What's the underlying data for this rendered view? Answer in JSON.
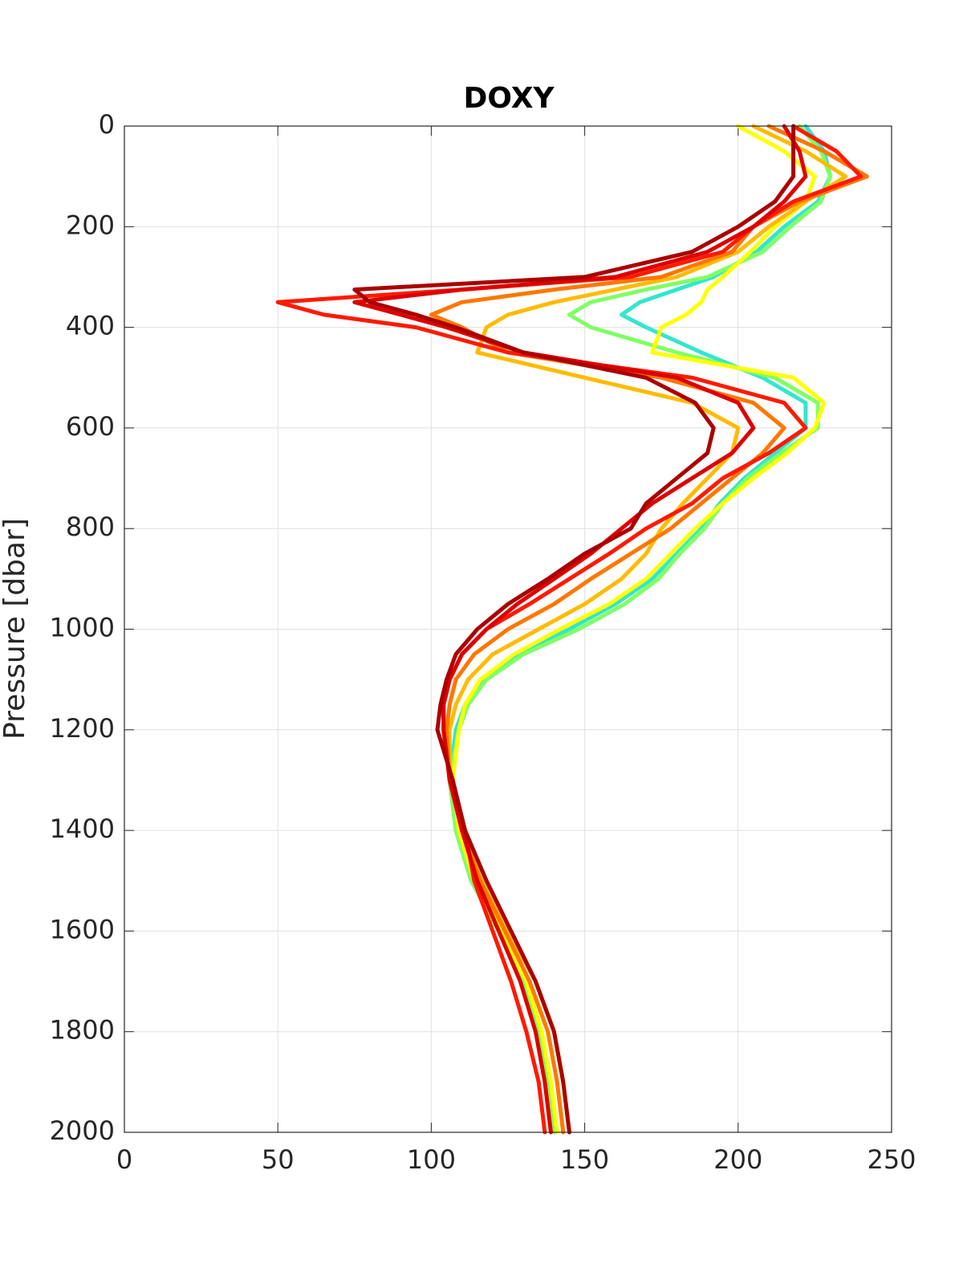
{
  "chart_data": {
    "type": "line",
    "title": "DOXY",
    "y_label": "Pressure [dbar]",
    "y": [
      0,
      50,
      100,
      150,
      200,
      250,
      300,
      325,
      350,
      375,
      400,
      450,
      500,
      550,
      600,
      650,
      700,
      750,
      800,
      850,
      900,
      950,
      1000,
      1050,
      1100,
      1150,
      1200,
      1300,
      1400,
      1500,
      1600,
      1700,
      1800,
      1900,
      2000
    ],
    "series": [
      {
        "color": "#33e6cc",
        "values": [
          222,
          228,
          230,
          226,
          215,
          206,
          192,
          180,
          168,
          162,
          170,
          188,
          208,
          222,
          222,
          212,
          202,
          194,
          188,
          180,
          172,
          160,
          145,
          128,
          117,
          111,
          108,
          106,
          108,
          113,
          122,
          130,
          135,
          138,
          140
        ]
      },
      {
        "color": "#80ff66",
        "values": [
          220,
          227,
          230,
          227,
          217,
          208,
          190,
          170,
          152,
          145,
          152,
          180,
          212,
          226,
          226,
          214,
          203,
          195,
          189,
          181,
          174,
          163,
          148,
          130,
          118,
          112,
          109,
          106,
          108,
          113,
          122,
          130,
          135,
          138,
          140
        ]
      },
      {
        "color": "#ffff00",
        "values": [
          200,
          215,
          225,
          222,
          212,
          204,
          195,
          190,
          188,
          183,
          175,
          172,
          218,
          228,
          225,
          216,
          205,
          195,
          186,
          178,
          170,
          158,
          142,
          127,
          116,
          111,
          109,
          107,
          109,
          114,
          123,
          131,
          136,
          139,
          141
        ]
      },
      {
        "color": "#ffbb00",
        "values": [
          205,
          222,
          235,
          222,
          210,
          200,
          180,
          160,
          140,
          125,
          118,
          115,
          150,
          185,
          200,
          198,
          190,
          182,
          175,
          170,
          162,
          150,
          135,
          120,
          112,
          108,
          106,
          106,
          110,
          117,
          125,
          134,
          140,
          143,
          145
        ]
      },
      {
        "color": "#ff7700",
        "values": [
          210,
          228,
          242,
          220,
          205,
          198,
          175,
          140,
          110,
          100,
          110,
          125,
          175,
          205,
          215,
          208,
          198,
          188,
          178,
          165,
          152,
          140,
          125,
          114,
          108,
          106,
          105,
          106,
          110,
          116,
          124,
          132,
          138,
          141,
          143
        ]
      },
      {
        "color": "#ff1a00",
        "values": [
          218,
          232,
          240,
          218,
          205,
          195,
          165,
          110,
          50,
          65,
          95,
          125,
          185,
          215,
          222,
          210,
          195,
          185,
          170,
          158,
          145,
          132,
          118,
          110,
          106,
          104,
          104,
          106,
          111,
          114,
          120,
          126,
          131,
          135,
          137
        ]
      },
      {
        "color": "#dd0000",
        "values": [
          215,
          220,
          222,
          215,
          205,
          190,
          160,
          110,
          75,
          90,
          105,
          130,
          180,
          200,
          205,
          198,
          185,
          172,
          162,
          152,
          140,
          128,
          118,
          110,
          106,
          104,
          104,
          106,
          110,
          115,
          122,
          129,
          134,
          137,
          139
        ]
      },
      {
        "color": "#aa0000",
        "values": [
          218,
          218,
          218,
          212,
          200,
          185,
          150,
          75,
          80,
          95,
          108,
          130,
          170,
          186,
          192,
          190,
          180,
          170,
          165,
          150,
          138,
          125,
          115,
          108,
          105,
          103,
          102,
          107,
          111,
          118,
          126,
          134,
          140,
          143,
          145
        ]
      }
    ],
    "xlim": [
      0,
      250
    ],
    "xticks": [
      0,
      50,
      100,
      150,
      200,
      250
    ],
    "ylim": [
      0,
      2000
    ],
    "yticks": [
      0,
      200,
      400,
      600,
      800,
      1000,
      1200,
      1400,
      1600,
      1800,
      2000
    ],
    "y_reversed": true,
    "grid": true
  }
}
